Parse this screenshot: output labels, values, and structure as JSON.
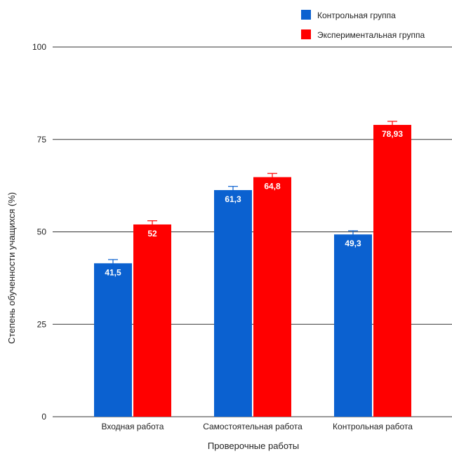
{
  "chart_data": {
    "type": "bar",
    "xlabel": "Проверочные работы",
    "ylabel": "Степень обученности учащихся (%)",
    "ylim": [
      0,
      100
    ],
    "yticks": [
      0,
      25,
      50,
      75,
      100
    ],
    "grid": true,
    "legend_position": "top-right",
    "categories": [
      "Входная работа",
      "Самостоятельная работа",
      "Контрольная работа"
    ],
    "series": [
      {
        "name": "Контрольная группа",
        "color": "#0b61d0",
        "values": [
          41.5,
          61.3,
          49.3
        ],
        "labels": [
          "41,5",
          "61,3",
          "49,3"
        ],
        "error_high": [
          42.5,
          62.3,
          50.3
        ]
      },
      {
        "name": "Экспериментальная группа",
        "color": "#ff0000",
        "values": [
          52,
          64.8,
          78.93
        ],
        "labels": [
          "52",
          "64,8",
          "78,93"
        ],
        "error_high": [
          53,
          65.8,
          79.9
        ]
      }
    ]
  }
}
